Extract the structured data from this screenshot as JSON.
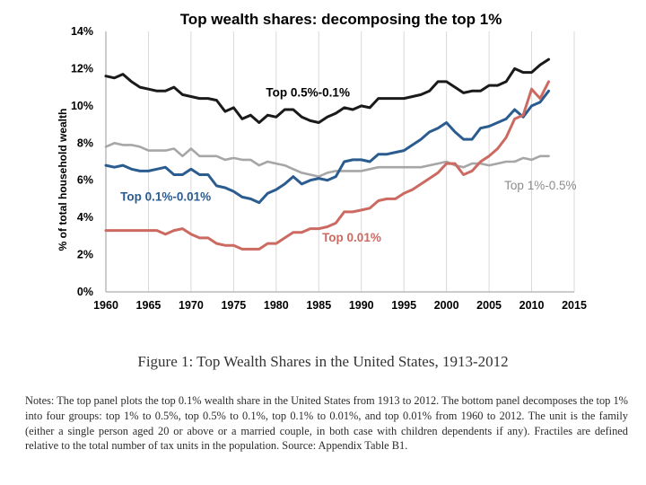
{
  "chart_data": {
    "type": "line",
    "title": "Top wealth shares: decomposing the top 1%",
    "xlabel": "",
    "ylabel": "% of total household wealth",
    "xlim": [
      1960,
      2015
    ],
    "ylim": [
      0,
      14
    ],
    "x_ticks": [
      "1960",
      "1965",
      "1970",
      "1975",
      "1980",
      "1985",
      "1990",
      "1995",
      "2000",
      "2005",
      "2010",
      "2015"
    ],
    "y_ticks": [
      "0%",
      "2%",
      "4%",
      "6%",
      "8%",
      "10%",
      "12%",
      "14%"
    ],
    "grid": "vertical",
    "series": [
      {
        "name": "Top 0.5%-0.1%",
        "color": "#1a1a1a",
        "x": [
          1960,
          1961,
          1962,
          1963,
          1964,
          1965,
          1966,
          1967,
          1968,
          1969,
          1970,
          1971,
          1972,
          1973,
          1974,
          1975,
          1976,
          1977,
          1978,
          1979,
          1980,
          1981,
          1982,
          1983,
          1984,
          1985,
          1986,
          1987,
          1988,
          1989,
          1990,
          1991,
          1992,
          1993,
          1994,
          1995,
          1996,
          1997,
          1998,
          1999,
          2000,
          2001,
          2002,
          2003,
          2004,
          2005,
          2006,
          2007,
          2008,
          2009,
          2010,
          2011,
          2012
        ],
        "values": [
          11.6,
          11.5,
          11.7,
          11.3,
          11.0,
          10.9,
          10.8,
          10.8,
          11.0,
          10.6,
          10.5,
          10.4,
          10.4,
          10.3,
          9.7,
          9.9,
          9.3,
          9.5,
          9.1,
          9.5,
          9.4,
          9.8,
          9.8,
          9.4,
          9.2,
          9.1,
          9.4,
          9.6,
          9.9,
          9.8,
          10.0,
          9.9,
          10.4,
          10.4,
          10.4,
          10.4,
          10.5,
          10.6,
          10.8,
          11.3,
          11.3,
          11.0,
          10.7,
          10.8,
          10.8,
          11.1,
          11.1,
          11.3,
          12.0,
          11.8,
          11.8,
          12.2,
          12.5
        ]
      },
      {
        "name": "Top 1%-0.5%",
        "color": "#a6a6a6",
        "x": [
          1960,
          1961,
          1962,
          1963,
          1964,
          1965,
          1966,
          1967,
          1968,
          1969,
          1970,
          1971,
          1972,
          1973,
          1974,
          1975,
          1976,
          1977,
          1978,
          1979,
          1980,
          1981,
          1982,
          1983,
          1984,
          1985,
          1986,
          1987,
          1988,
          1989,
          1990,
          1991,
          1992,
          1993,
          1994,
          1995,
          1996,
          1997,
          1998,
          1999,
          2000,
          2001,
          2002,
          2003,
          2004,
          2005,
          2006,
          2007,
          2008,
          2009,
          2010,
          2011,
          2012
        ],
        "values": [
          7.8,
          8.0,
          7.9,
          7.9,
          7.8,
          7.6,
          7.6,
          7.6,
          7.7,
          7.3,
          7.7,
          7.3,
          7.3,
          7.3,
          7.1,
          7.2,
          7.1,
          7.1,
          6.8,
          7.0,
          6.9,
          6.8,
          6.6,
          6.4,
          6.3,
          6.2,
          6.4,
          6.5,
          6.5,
          6.5,
          6.5,
          6.6,
          6.7,
          6.7,
          6.7,
          6.7,
          6.7,
          6.7,
          6.8,
          6.9,
          7.0,
          6.8,
          6.7,
          6.9,
          6.9,
          6.8,
          6.9,
          7.0,
          7.0,
          7.2,
          7.1,
          7.3,
          7.3
        ]
      },
      {
        "name": "Top 0.1%-0.01%",
        "color": "#2a5c8f",
        "x": [
          1960,
          1961,
          1962,
          1963,
          1964,
          1965,
          1966,
          1967,
          1968,
          1969,
          1970,
          1971,
          1972,
          1973,
          1974,
          1975,
          1976,
          1977,
          1978,
          1979,
          1980,
          1981,
          1982,
          1983,
          1984,
          1985,
          1986,
          1987,
          1988,
          1989,
          1990,
          1991,
          1992,
          1993,
          1994,
          1995,
          1996,
          1997,
          1998,
          1999,
          2000,
          2001,
          2002,
          2003,
          2004,
          2005,
          2006,
          2007,
          2008,
          2009,
          2010,
          2011,
          2012
        ],
        "values": [
          6.8,
          6.7,
          6.8,
          6.6,
          6.5,
          6.5,
          6.6,
          6.7,
          6.3,
          6.3,
          6.6,
          6.3,
          6.3,
          5.7,
          5.6,
          5.4,
          5.1,
          5.0,
          4.8,
          5.3,
          5.5,
          5.8,
          6.2,
          5.8,
          6.0,
          6.1,
          6.0,
          6.2,
          7.0,
          7.1,
          7.1,
          7.0,
          7.4,
          7.4,
          7.5,
          7.6,
          7.9,
          8.2,
          8.6,
          8.8,
          9.1,
          8.6,
          8.2,
          8.2,
          8.8,
          8.9,
          9.1,
          9.3,
          9.8,
          9.4,
          10.0,
          10.2,
          10.8
        ]
      },
      {
        "name": "Top 0.01%",
        "color": "#cc6a62",
        "x": [
          1960,
          1961,
          1962,
          1963,
          1964,
          1965,
          1966,
          1967,
          1968,
          1969,
          1970,
          1971,
          1972,
          1973,
          1974,
          1975,
          1976,
          1977,
          1978,
          1979,
          1980,
          1981,
          1982,
          1983,
          1984,
          1985,
          1986,
          1987,
          1988,
          1989,
          1990,
          1991,
          1992,
          1993,
          1994,
          1995,
          1996,
          1997,
          1998,
          1999,
          2000,
          2001,
          2002,
          2003,
          2004,
          2005,
          2006,
          2007,
          2008,
          2009,
          2010,
          2011,
          2012
        ],
        "values": [
          3.3,
          3.3,
          3.3,
          3.3,
          3.3,
          3.3,
          3.3,
          3.1,
          3.3,
          3.4,
          3.1,
          2.9,
          2.9,
          2.6,
          2.5,
          2.5,
          2.3,
          2.3,
          2.3,
          2.6,
          2.6,
          2.9,
          3.2,
          3.2,
          3.4,
          3.4,
          3.5,
          3.7,
          4.3,
          4.3,
          4.4,
          4.5,
          4.9,
          5.0,
          5.0,
          5.3,
          5.5,
          5.8,
          6.1,
          6.4,
          6.9,
          6.9,
          6.3,
          6.5,
          7.0,
          7.3,
          7.7,
          8.3,
          9.3,
          9.5,
          10.9,
          10.4,
          11.3
        ]
      }
    ],
    "annotations": [
      {
        "series": "Top 0.5%-0.1%",
        "text": "Top 0.5%-0.1%",
        "x": 1978.8,
        "y": 10.5
      },
      {
        "series": "Top 1%-0.5%",
        "text": "Top 1%-0.5%",
        "x": 2006.8,
        "y": 5.5
      },
      {
        "series": "Top 0.1%-0.01%",
        "text": "Top 0.1%-0.01%",
        "x": 1961.7,
        "y": 4.9
      },
      {
        "series": "Top 0.01%",
        "text": "Top 0.01%",
        "x": 1985.4,
        "y": 2.7
      }
    ]
  },
  "figure": {
    "caption": "Figure 1: Top Wealth Shares in the United States, 1913-2012",
    "notes": "Notes: The top panel plots the top 0.1% wealth share in the United States from 1913 to 2012. The bottom panel decomposes the top 1% into four groups: top 1% to 0.5%, top 0.5% to 0.1%, top 0.1% to 0.01%, and top 0.01% from 1960 to 2012. The unit is the family (either a single person aged 20 or above or a married couple, in both case with children dependents if any). Fractiles are defined relative to the total number of tax units in the population. Source: Appendix Table B1."
  }
}
